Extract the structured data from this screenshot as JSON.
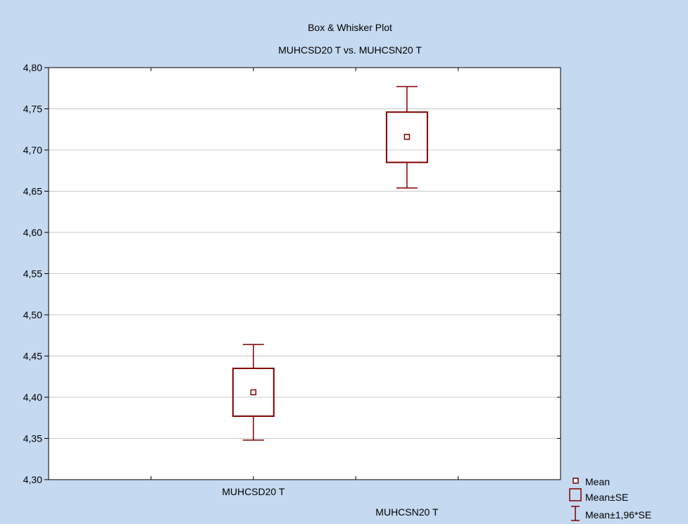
{
  "chart_data": {
    "type": "box",
    "title": "Box & Whisker Plot",
    "subtitle": "MUHCSD20 T vs. MUHCSN20 T",
    "xlabel": "",
    "ylabel": "",
    "ylim": [
      4.3,
      4.8
    ],
    "yticks": [
      "4,30",
      "4,35",
      "4,40",
      "4,45",
      "4,50",
      "4,55",
      "4,60",
      "4,65",
      "4,70",
      "4,75",
      "4,80"
    ],
    "grid": true,
    "categories": [
      "MUHCSD20 T",
      "MUHCSN20 T"
    ],
    "series": [
      {
        "category": "MUHCSD20 T",
        "mean": 4.406,
        "se_low": 4.377,
        "se_high": 4.435,
        "ci_low": 4.348,
        "ci_high": 4.464
      },
      {
        "category": "MUHCSN20 T",
        "mean": 4.716,
        "se_low": 4.685,
        "se_high": 4.746,
        "ci_low": 4.654,
        "ci_high": 4.777
      }
    ],
    "legend": {
      "position": "bottom-right",
      "items": [
        {
          "symbol": "mean-square",
          "label": "Mean"
        },
        {
          "symbol": "box",
          "label": "Mean±SE"
        },
        {
          "symbol": "whisker",
          "label": "Mean±1,96*SE"
        }
      ]
    },
    "colors": {
      "box": "#7f0000",
      "background": "#c5d9f0",
      "plot": "#ffffff",
      "grid": "#c8c8c8"
    }
  }
}
